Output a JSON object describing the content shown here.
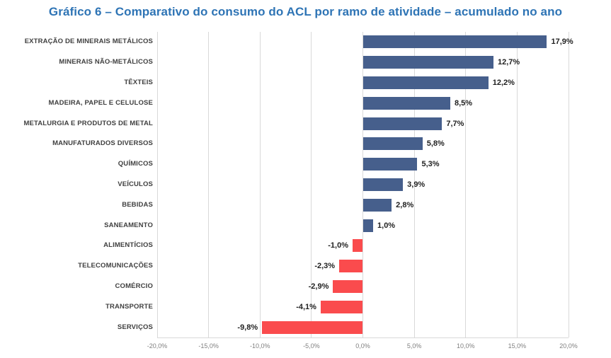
{
  "title": "Gráfico 6 – Comparativo do consumo do ACL por ramo de atividade – acumulado no ano",
  "title_color": "#2E74B5",
  "chart_data": {
    "type": "bar",
    "orientation": "horizontal",
    "title": "Gráfico 6 – Comparativo do consumo do ACL por ramo de atividade – acumulado no ano",
    "categories": [
      "EXTRAÇÃO DE MINERAIS METÁLICOS",
      "MINERAIS NÃO-METÁLICOS",
      "TÊXTEIS",
      "MADEIRA, PAPEL E CELULOSE",
      "METALURGIA E PRODUTOS DE METAL",
      "MANUFATURADOS DIVERSOS",
      "QUÍMICOS",
      "VEÍCULOS",
      "BEBIDAS",
      "SANEAMENTO",
      "ALIMENTÍCIOS",
      "TELECOMUNICAÇÕES",
      "COMÉRCIO",
      "TRANSPORTE",
      "SERVIÇOS"
    ],
    "values": [
      17.9,
      12.7,
      12.2,
      8.5,
      7.7,
      5.8,
      5.3,
      3.9,
      2.8,
      1.0,
      -1.0,
      -2.3,
      -2.9,
      -4.1,
      -9.8
    ],
    "value_labels": [
      "17,9%",
      "12,7%",
      "12,2%",
      "8,5%",
      "7,7%",
      "5,8%",
      "5,3%",
      "3,9%",
      "2,8%",
      "1,0%",
      "-1,0%",
      "-2,3%",
      "-2,9%",
      "-4,1%",
      "-9,8%"
    ],
    "xlim": [
      -20,
      20
    ],
    "xticks": [
      -20,
      -15,
      -10,
      -5,
      0,
      5,
      10,
      15,
      20
    ],
    "xtick_labels": [
      "-20,0%",
      "-15,0%",
      "-10,0%",
      "-5,0%",
      "0,0%",
      "5,0%",
      "10,0%",
      "15,0%",
      "20,0%"
    ],
    "grid": true,
    "legend": "none",
    "positive_color": "#465F8C",
    "negative_color": "#FA4B4D",
    "gridline_color": "#D9D9D9",
    "category_label_color": "#404040",
    "value_label_color": "#1F1F1F",
    "tick_label_color": "#7F7F7F"
  }
}
